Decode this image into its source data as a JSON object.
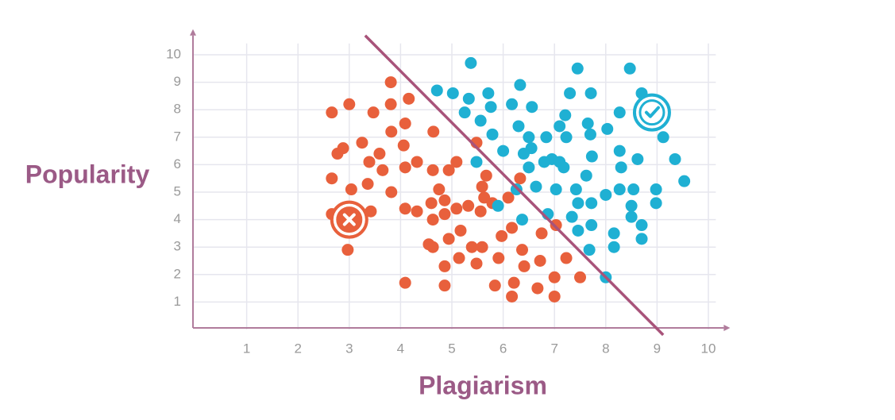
{
  "chart_data": {
    "type": "scatter",
    "xlabel": "Plagiarism",
    "ylabel": "Popularity",
    "xlim": [
      0,
      10.3
    ],
    "ylim": [
      0,
      10.7
    ],
    "xticks": [
      1,
      2,
      3,
      4,
      5,
      6,
      7,
      8,
      9,
      10
    ],
    "yticks": [
      1,
      2,
      3,
      4,
      5,
      6,
      7,
      8,
      9,
      10
    ],
    "grid": true,
    "series": [
      {
        "color": "#e8603c",
        "x": [
          2.66,
          3.0,
          3.47,
          3.81,
          3.81,
          4.16,
          4.09,
          3.82,
          3.25,
          2.88,
          2.77,
          3.39,
          3.59,
          4.06,
          4.64,
          2.66,
          3.04,
          3.36,
          3.65,
          3.82,
          4.09,
          4.32,
          4.63,
          4.94,
          5.09,
          5.48,
          4.09,
          4.32,
          4.75,
          4.86,
          4.6,
          4.63,
          4.86,
          5.09,
          5.32,
          5.59,
          5.67,
          5.63,
          5.56,
          5.79,
          6.1,
          6.33,
          2.66,
          3.42,
          2.97,
          4.55,
          4.63,
          4.94,
          5.17,
          5.39,
          5.59,
          5.14,
          4.86,
          5.48,
          5.91,
          5.97,
          6.17,
          6.37,
          6.41,
          6.72,
          6.75,
          7.03,
          7.23,
          7.0,
          7.5,
          6.67,
          6.21,
          5.84,
          6.17,
          7.0,
          4.86,
          4.09
        ],
        "values": [
          7.9,
          8.2,
          7.9,
          9.0,
          8.2,
          8.4,
          7.5,
          7.2,
          6.8,
          6.6,
          6.4,
          6.1,
          6.4,
          6.7,
          7.2,
          5.5,
          5.1,
          5.3,
          5.8,
          5.0,
          5.9,
          6.1,
          5.8,
          5.8,
          6.1,
          6.8,
          4.4,
          4.3,
          5.1,
          4.7,
          4.6,
          4.0,
          4.2,
          4.4,
          4.5,
          5.2,
          5.6,
          4.8,
          4.3,
          4.6,
          4.8,
          5.5,
          4.2,
          4.3,
          2.9,
          3.1,
          3.0,
          3.3,
          3.6,
          3.0,
          3.0,
          2.6,
          2.3,
          2.4,
          2.6,
          3.4,
          3.7,
          2.9,
          2.3,
          2.5,
          3.5,
          3.8,
          2.6,
          1.9,
          1.9,
          1.5,
          1.7,
          1.6,
          1.2,
          1.2,
          1.6,
          1.7
        ]
      },
      {
        "color": "#1fb0d3",
        "x": [
          5.37,
          4.71,
          5.02,
          5.33,
          5.25,
          5.71,
          5.76,
          5.56,
          5.79,
          6.17,
          6.33,
          6.56,
          6.3,
          6.5,
          6.0,
          6.55,
          6.4,
          6.5,
          6.84,
          7.21,
          7.1,
          7.3,
          7.45,
          7.71,
          7.65,
          7.7,
          7.23,
          6.95,
          7.1,
          7.18,
          6.8,
          5.48,
          6.64,
          7.03,
          7.42,
          7.62,
          7.73,
          8.03,
          8.27,
          8.47,
          8.7,
          8.27,
          8.3,
          8.62,
          8.27,
          8.54,
          8.0,
          8.5,
          8.5,
          8.7,
          8.7,
          8.16,
          8.16,
          7.72,
          7.46,
          7.34,
          7.46,
          7.72,
          7.68,
          8.0,
          8.98,
          8.98,
          9.12,
          9.35,
          9.53,
          5.9,
          6.37,
          6.87,
          6.26
        ],
        "values": [
          9.7,
          8.7,
          8.6,
          8.4,
          7.9,
          8.6,
          8.1,
          7.6,
          7.1,
          8.2,
          8.9,
          8.1,
          7.4,
          7.0,
          6.5,
          6.6,
          6.4,
          5.9,
          7.0,
          7.8,
          7.4,
          8.6,
          9.5,
          8.6,
          7.5,
          7.1,
          7.0,
          6.2,
          6.1,
          5.9,
          6.1,
          6.1,
          5.2,
          5.1,
          5.1,
          5.6,
          6.3,
          7.3,
          7.9,
          9.5,
          8.6,
          6.5,
          5.9,
          6.2,
          5.1,
          5.1,
          4.9,
          4.5,
          4.1,
          3.8,
          3.3,
          3.5,
          3.0,
          3.8,
          3.6,
          4.1,
          4.6,
          4.6,
          2.9,
          1.9,
          5.1,
          4.6,
          7.0,
          6.2,
          5.4,
          4.5,
          4.0,
          4.2,
          5.1
        ]
      }
    ],
    "boundary": {
      "color": "#a8537a",
      "x": [
        3.31,
        9.12
      ],
      "y": [
        10.7,
        -0.2
      ]
    },
    "markers": [
      {
        "symbol": "cross",
        "color": "#e8603c",
        "x": 3.0,
        "y": 4.0
      },
      {
        "symbol": "check",
        "color": "#1fb0d3",
        "x": 8.9,
        "y": 7.9
      }
    ]
  }
}
